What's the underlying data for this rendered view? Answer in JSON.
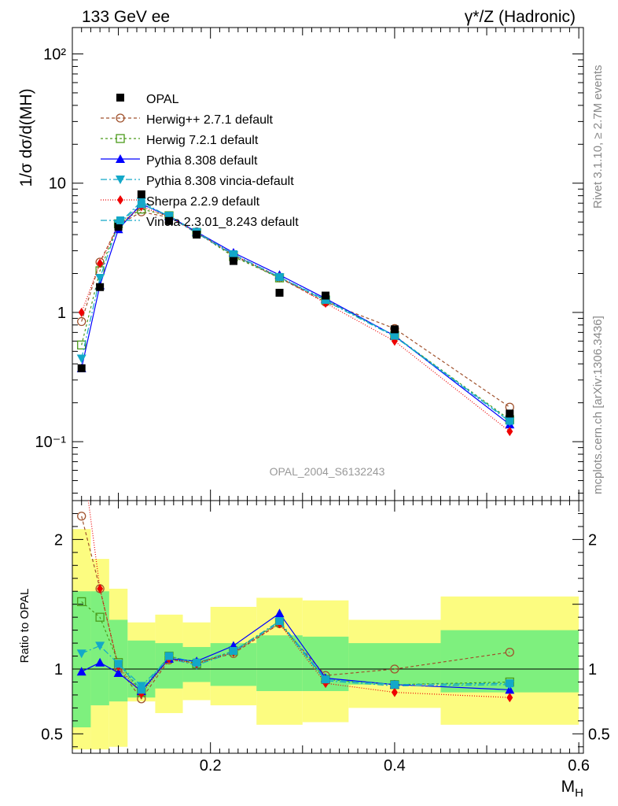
{
  "header": {
    "left": "133 GeV ee",
    "right": "γ*/Z (Hadronic)"
  },
  "side_labels": {
    "rivet": "Rivet 3.1.10, ≥ 2.7M events",
    "mcplots": "mcplots.cern.ch [arXiv:1306.3436]"
  },
  "watermark": "OPAL_2004_S6132243",
  "colors": {
    "band_inner": "#7ef07e",
    "band_outer": "#fcfc80",
    "frame": "#000000"
  },
  "chart_data": [
    {
      "type": "line",
      "panel": "main",
      "ylabel": "1/σ dσ/d(M_H)",
      "yscale": "log",
      "ylim": [
        0.035,
        160
      ],
      "xlim": [
        0.05,
        0.605
      ],
      "yticks": [
        {
          "value": 100,
          "label": "10²"
        },
        {
          "value": 10,
          "label": "10"
        },
        {
          "value": 1,
          "label": "1"
        },
        {
          "value": 0.1,
          "label": "10⁻¹"
        }
      ],
      "x": [
        0.06,
        0.08,
        0.1,
        0.125,
        0.155,
        0.185,
        0.225,
        0.275,
        0.325,
        0.4,
        0.525
      ],
      "data": {
        "name": "OPAL",
        "values": [
          0.37,
          1.57,
          4.6,
          8.2,
          5.1,
          4.0,
          2.5,
          1.42,
          1.35,
          0.74,
          0.165
        ]
      },
      "series": [
        {
          "name": "Herwig++ 2.7.1 default",
          "color": "#a0522d",
          "marker": "circle-open",
          "dash": "4,3",
          "values": [
            0.85,
            2.45,
            4.75,
            6.0,
            5.45,
            4.2,
            2.75,
            1.85,
            1.2,
            0.75,
            0.185
          ]
        },
        {
          "name": "Herwig 7.2.1 default",
          "color": "#4a9a1a",
          "marker": "square-open",
          "dash": "3,3",
          "values": [
            0.56,
            2.1,
            4.85,
            6.3,
            5.6,
            4.15,
            2.7,
            1.85,
            1.25,
            0.66,
            0.148
          ]
        },
        {
          "name": "Pythia 8.308 default",
          "color": "#0000ff",
          "marker": "triangle-up",
          "dash": "",
          "values": [
            0.37,
            1.62,
            4.4,
            6.9,
            5.55,
            4.2,
            2.9,
            1.95,
            1.28,
            0.66,
            0.136
          ]
        },
        {
          "name": "Pythia 8.308 vincia-default",
          "color": "#13a8c8",
          "marker": "triangle-down",
          "dash": "8,3,2,3",
          "values": [
            0.44,
            1.85,
            4.85,
            7.2,
            5.5,
            4.1,
            2.78,
            1.87,
            1.23,
            0.65,
            0.143
          ]
        },
        {
          "name": "Sherpa 2.2.9 default",
          "color": "#ee0000",
          "marker": "diamond",
          "dash": "1,2",
          "values": [
            1.0,
            2.4,
            4.7,
            6.6,
            5.5,
            4.15,
            2.8,
            1.88,
            1.18,
            0.6,
            0.12
          ]
        },
        {
          "name": "Vincia 2.3.01_8.243 default",
          "color": "#13a8c8",
          "marker": "square",
          "dash": "8,3,2,3",
          "values": [
            null,
            null,
            4.8,
            6.9,
            5.6,
            4.2,
            2.82,
            1.88,
            1.25,
            0.66,
            0.145
          ]
        }
      ]
    },
    {
      "type": "line",
      "panel": "ratio",
      "ylabel": "Ratio to OPAL",
      "xlabel": "M_H",
      "ylim": [
        0.35,
        2.3
      ],
      "xlim": [
        0.05,
        0.605
      ],
      "yticks": [
        {
          "value": 2,
          "label": "2"
        },
        {
          "value": 1,
          "label": "1"
        },
        {
          "value": 0.5,
          "label": "0.5"
        }
      ],
      "xticks": [
        {
          "value": 0.2,
          "label": "0.2"
        },
        {
          "value": 0.4,
          "label": "0.4"
        },
        {
          "value": 0.6,
          "label": "0.6"
        }
      ],
      "bins": [
        {
          "x0": 0.05,
          "x1": 0.07,
          "inner": [
            0.55,
            1.6
          ],
          "outer": [
            0.38,
            2.08
          ]
        },
        {
          "x0": 0.07,
          "x1": 0.09,
          "inner": [
            0.72,
            1.6
          ],
          "outer": [
            0.38,
            1.85
          ]
        },
        {
          "x0": 0.09,
          "x1": 0.11,
          "inner": [
            0.75,
            1.38
          ],
          "outer": [
            0.4,
            1.62
          ]
        },
        {
          "x0": 0.11,
          "x1": 0.14,
          "inner": [
            0.78,
            1.22
          ],
          "outer": [
            0.75,
            1.36
          ]
        },
        {
          "x0": 0.14,
          "x1": 0.17,
          "inner": [
            0.85,
            1.2
          ],
          "outer": [
            0.66,
            1.42
          ]
        },
        {
          "x0": 0.17,
          "x1": 0.2,
          "inner": [
            0.9,
            1.17
          ],
          "outer": [
            0.76,
            1.36
          ]
        },
        {
          "x0": 0.2,
          "x1": 0.25,
          "inner": [
            0.87,
            1.2
          ],
          "outer": [
            0.72,
            1.48
          ]
        },
        {
          "x0": 0.25,
          "x1": 0.3,
          "inner": [
            0.83,
            1.26
          ],
          "outer": [
            0.57,
            1.55
          ]
        },
        {
          "x0": 0.3,
          "x1": 0.35,
          "inner": [
            0.83,
            1.25
          ],
          "outer": [
            0.59,
            1.53
          ]
        },
        {
          "x0": 0.35,
          "x1": 0.45,
          "inner": [
            0.88,
            1.2
          ],
          "outer": [
            0.7,
            1.38
          ]
        },
        {
          "x0": 0.45,
          "x1": 0.6,
          "inner": [
            0.82,
            1.3
          ],
          "outer": [
            0.57,
            1.56
          ]
        }
      ],
      "x": [
        0.06,
        0.08,
        0.1,
        0.125,
        0.155,
        0.185,
        0.225,
        0.275,
        0.325,
        0.4,
        0.525
      ],
      "series": [
        {
          "name": "Herwig++ 2.7.1 default",
          "color": "#a0522d",
          "marker": "circle-open",
          "dash": "4,3",
          "values": [
            2.18,
            1.62,
            1.01,
            0.77,
            1.07,
            1.05,
            1.12,
            1.35,
            0.95,
            1.0,
            1.13
          ]
        },
        {
          "name": "Herwig 7.2.1 default",
          "color": "#4a9a1a",
          "marker": "square-open",
          "dash": "3,3",
          "values": [
            1.52,
            1.4,
            1.05,
            0.82,
            1.1,
            1.04,
            1.14,
            1.36,
            0.92,
            0.88,
            0.9
          ]
        },
        {
          "name": "Pythia 8.308 default",
          "color": "#0000ff",
          "marker": "triangle-up",
          "dash": "",
          "values": [
            0.98,
            1.05,
            0.97,
            0.83,
            1.08,
            1.06,
            1.18,
            1.43,
            0.93,
            0.88,
            0.84
          ]
        },
        {
          "name": "Pythia 8.308 vincia-default",
          "color": "#13a8c8",
          "marker": "triangle-down",
          "dash": "8,3,2,3",
          "values": [
            1.12,
            1.18,
            1.04,
            0.87,
            1.08,
            1.03,
            1.13,
            1.36,
            0.91,
            0.87,
            0.88
          ]
        },
        {
          "name": "Sherpa 2.2.9 default",
          "color": "#ee0000",
          "marker": "diamond",
          "dash": "1,2",
          "values": [
            2.7,
            1.62,
            1.02,
            0.81,
            1.08,
            1.04,
            1.13,
            1.35,
            0.89,
            0.82,
            0.78
          ]
        },
        {
          "name": "Vincia 2.3.01_8.243 default",
          "color": "#13a8c8",
          "marker": "square",
          "dash": "8,3,2,3",
          "values": [
            null,
            null,
            1.04,
            0.84,
            1.1,
            1.05,
            1.14,
            1.37,
            0.92,
            0.88,
            0.89
          ]
        }
      ]
    }
  ]
}
